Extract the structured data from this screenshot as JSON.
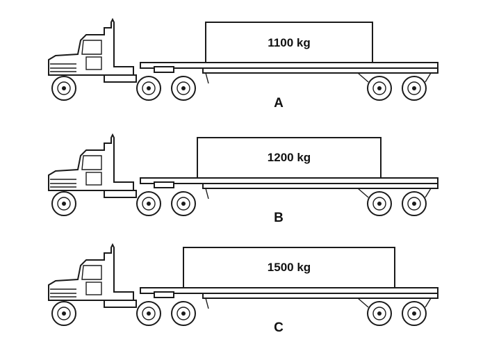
{
  "trucks": [
    {
      "label": "A",
      "load": "1100 kg"
    },
    {
      "label": "B",
      "load": "1200 kg"
    },
    {
      "label": "C",
      "load": "1500 kg"
    }
  ]
}
